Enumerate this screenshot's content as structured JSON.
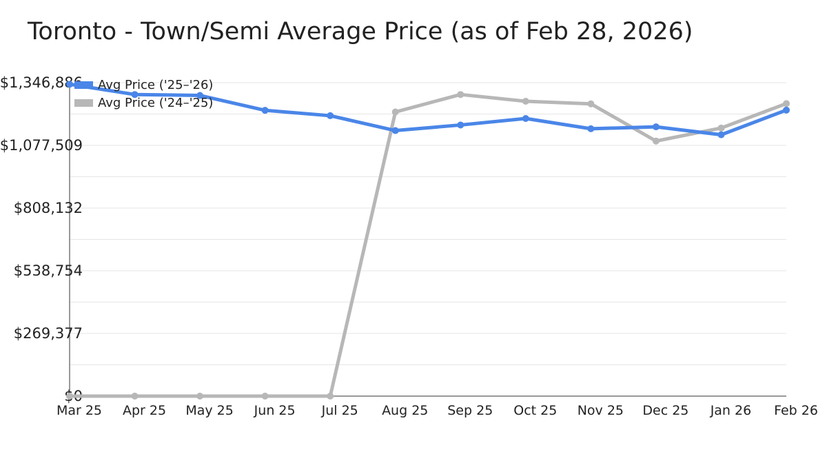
{
  "title": "Toronto - Town/Semi Average Price (as of Feb 28, 2026)",
  "chart_data": {
    "type": "line",
    "title": "Toronto - Town/Semi Average Price (as of Feb 28, 2026)",
    "categories": [
      "Mar 25",
      "Apr 25",
      "May 25",
      "Jun 25",
      "Jul 25",
      "Aug 25",
      "Sep 25",
      "Oct 25",
      "Nov 25",
      "Dec 25",
      "Jan 26",
      "Feb 26"
    ],
    "y_ticks": [
      "$0",
      "$269,377",
      "$538,754",
      "$808,132",
      "$1,077,509",
      "$1,346,886"
    ],
    "ylim": [
      0,
      1346886
    ],
    "grid": true,
    "legend_position": "top-left",
    "series": [
      {
        "name": "Avg Price ('25–'26)",
        "color": "#4a86e8",
        "values": [
          1340000,
          1296000,
          1292000,
          1228000,
          1205000,
          1141000,
          1165000,
          1193000,
          1149000,
          1157000,
          1123000,
          1229000
        ]
      },
      {
        "name": "Avg Price ('24–'25)",
        "color": "#b7b7b7",
        "values": [
          0,
          0,
          0,
          0,
          0,
          1221000,
          1296000,
          1267000,
          1256000,
          1096000,
          1152000,
          1257000
        ]
      }
    ]
  }
}
